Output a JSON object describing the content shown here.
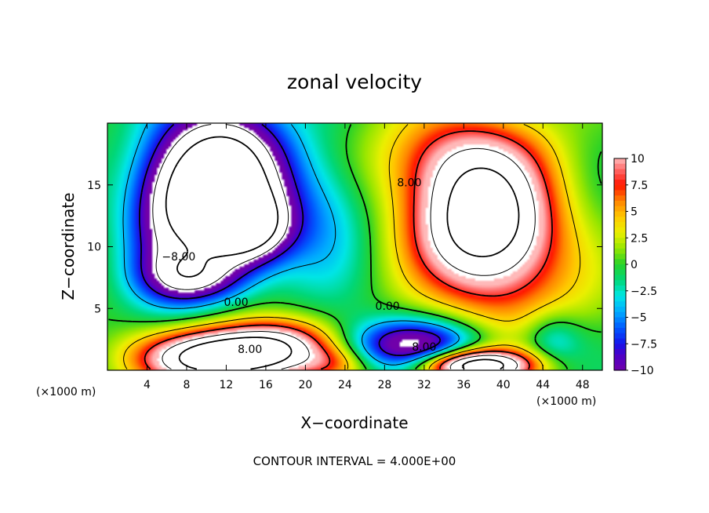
{
  "chart_data": {
    "type": "heatmap",
    "title": "zonal velocity",
    "xlabel": "X−coordinate",
    "ylabel": "Z−coordinate",
    "x_unit": "(×1000 m)",
    "x_unit_right": "(×1000 m)",
    "footer": "CONTOUR INTERVAL = 4.000E+00",
    "xlim": [
      0,
      50
    ],
    "ylim": [
      0,
      20
    ],
    "x_ticks": [
      "4",
      "8",
      "12",
      "16",
      "20",
      "24",
      "28",
      "32",
      "36",
      "40",
      "44",
      "48"
    ],
    "x_tick_values": [
      4,
      8,
      12,
      16,
      20,
      24,
      28,
      32,
      36,
      40,
      44,
      48
    ],
    "y_ticks": [
      "5",
      "10",
      "15"
    ],
    "y_tick_values": [
      5,
      10,
      15
    ],
    "colorbar": {
      "ticks": [
        "10",
        "7.5",
        "5",
        "2.5",
        "0",
        "−2.5",
        "−5",
        "−7.5",
        "−10"
      ],
      "tick_values": [
        10,
        7.5,
        5,
        2.5,
        0,
        -2.5,
        -5,
        -7.5,
        -10
      ],
      "range": [
        -10,
        10
      ]
    },
    "contour_interval": 4,
    "contour_labels": [
      {
        "text": "8.00",
        "x": 30.5,
        "y": 14.9
      },
      {
        "text": "−8.00",
        "x": 7.2,
        "y": 8.9
      },
      {
        "text": "0.00",
        "x": 13.0,
        "y": 5.2
      },
      {
        "text": "0.00",
        "x": 28.3,
        "y": 4.9
      },
      {
        "text": "8.00",
        "x": 14.4,
        "y": 1.4
      },
      {
        "text": "8.00",
        "x": 32.0,
        "y": 1.6
      }
    ],
    "features": [
      {
        "sign": "negative",
        "x": 11.5,
        "y": 15.5,
        "sx": 4.5,
        "sy": 4.0,
        "amp": -22
      },
      {
        "sign": "negative",
        "x": 14.0,
        "y": 11.5,
        "sx": 3.0,
        "sy": 2.0,
        "amp": -14
      },
      {
        "sign": "negative",
        "x": 9.0,
        "y": 7.5,
        "sx": 3.5,
        "sy": 1.5,
        "amp": -10
      },
      {
        "sign": "negative",
        "x": 6.0,
        "y": 12.0,
        "sx": 3.0,
        "sy": 4.0,
        "amp": -8
      },
      {
        "sign": "positive",
        "x": 38.0,
        "y": 11.5,
        "sx": 5.0,
        "sy": 3.5,
        "amp": 18
      },
      {
        "sign": "positive",
        "x": 36.0,
        "y": 17.0,
        "sx": 6.0,
        "sy": 3.0,
        "amp": 9
      },
      {
        "sign": "positive",
        "x": 41.0,
        "y": 6.0,
        "sx": 5.0,
        "sy": 3.0,
        "amp": 4
      },
      {
        "sign": "positive",
        "x": 11.0,
        "y": 1.0,
        "sx": 5.0,
        "sy": 1.5,
        "amp": 20
      },
      {
        "sign": "positive",
        "x": 17.0,
        "y": 2.0,
        "sx": 4.0,
        "sy": 1.5,
        "amp": 11
      },
      {
        "sign": "positive",
        "x": 23.0,
        "y": 0.5,
        "sx": 2.5,
        "sy": 1.0,
        "amp": 4
      },
      {
        "sign": "negative",
        "x": 31.0,
        "y": 2.0,
        "sx": 4.5,
        "sy": 1.5,
        "amp": -12
      },
      {
        "sign": "positive",
        "x": 37.0,
        "y": 0.4,
        "sx": 4.0,
        "sy": 0.9,
        "amp": 20
      },
      {
        "sign": "negative",
        "x": 45.0,
        "y": 2.5,
        "sx": 2.0,
        "sy": 1.5,
        "amp": -4
      },
      {
        "sign": "negative",
        "x": 22.0,
        "y": 13.0,
        "sx": 3.5,
        "sy": 4.0,
        "amp": -4
      }
    ]
  }
}
